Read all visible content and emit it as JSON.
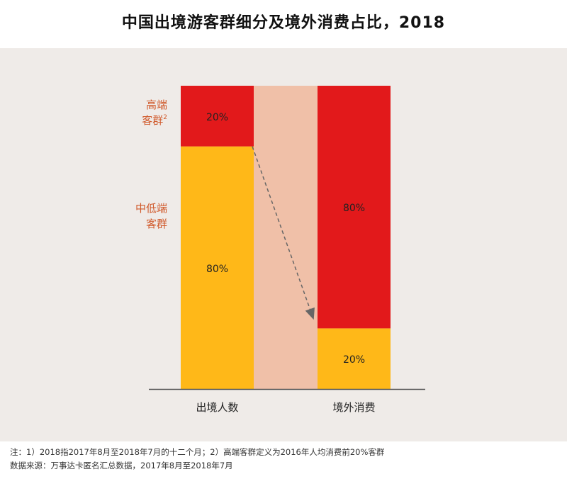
{
  "title": "中国出境游客群细分及境外消费占比，2018",
  "chart_data": {
    "type": "bar",
    "stacked": true,
    "normalized": true,
    "categories": [
      "出境人数",
      "境外消费"
    ],
    "series": [
      {
        "name_lines": [
          "中低端",
          "客群"
        ],
        "values": [
          80,
          20
        ],
        "color": "#ffb818"
      },
      {
        "name_lines": [
          "高端",
          "客群"
        ],
        "superscript": "2",
        "values": [
          20,
          80
        ],
        "color": "#e2191b"
      }
    ],
    "value_suffix": "%",
    "connector_color": "#f0c0a8",
    "arrow_color": "#666666",
    "label_color": "#d05a2c"
  },
  "notes": [
    "注：1）2018指2017年8月至2018年7月的十二个月；2）高端客群定义为2016年人均消费前20%客群",
    "数据来源：万事达卡匿名汇总数据，2017年8月至2018年7月"
  ]
}
